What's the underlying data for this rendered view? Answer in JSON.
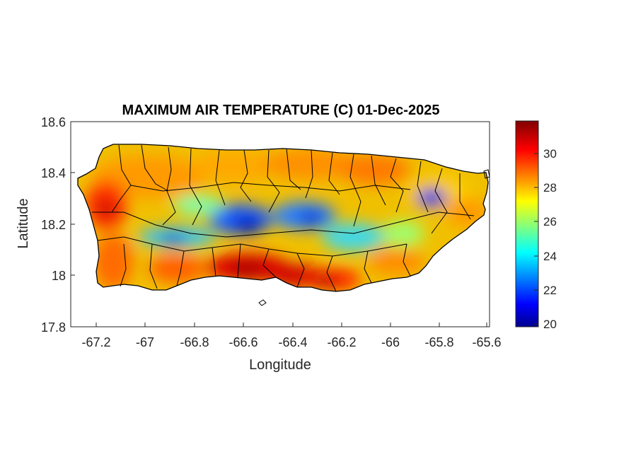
{
  "figure": {
    "title": "MAXIMUM AIR TEMPERATURE (C) 01-Dec-2025",
    "xlabel": "Longitude",
    "ylabel": "Latitude",
    "x_ticks": [
      "-67.2",
      "-67",
      "-66.8",
      "-66.6",
      "-66.4",
      "-66.2",
      "-66",
      "-65.8",
      "-65.6"
    ],
    "y_ticks": [
      "18.6",
      "18.4",
      "18.2",
      "18",
      "17.8"
    ],
    "colorbar_ticks": [
      "30",
      "28",
      "26",
      "24",
      "22",
      "20"
    ]
  },
  "chart_data": {
    "type": "heatmap",
    "title": "MAXIMUM AIR TEMPERATURE (C) 01-Dec-2025",
    "xlabel": "Longitude",
    "ylabel": "Latitude",
    "xlim": [
      -67.3,
      -65.6
    ],
    "ylim": [
      17.8,
      18.6
    ],
    "x_tick_values": [
      -67.2,
      -67,
      -66.8,
      -66.6,
      -66.4,
      -66.2,
      -66,
      -65.8,
      -65.6
    ],
    "y_tick_values": [
      18.6,
      18.4,
      18.2,
      18.0,
      17.8
    ],
    "colorbar": {
      "colormap": "jet",
      "range": [
        20,
        32
      ],
      "ticks": [
        20,
        22,
        24,
        26,
        28,
        30
      ],
      "units": "C"
    },
    "hot_spots": [
      {
        "lon": -66.55,
        "lat": 18.02,
        "value": 31.5
      },
      {
        "lon": -66.33,
        "lat": 17.97,
        "value": 31
      },
      {
        "lon": -67.17,
        "lat": 18.27,
        "value": 31
      },
      {
        "lon": -66.45,
        "lat": 18.0,
        "value": 30.5
      }
    ],
    "cold_spots": [
      {
        "lon": -65.8,
        "lat": 18.29,
        "value": 21.5
      },
      {
        "lon": -66.55,
        "lat": 18.2,
        "value": 22
      },
      {
        "lon": -66.35,
        "lat": 18.23,
        "value": 22.5
      },
      {
        "lon": -66.85,
        "lat": 18.15,
        "value": 23
      }
    ],
    "grid": false,
    "legend": "colorbar-right"
  }
}
